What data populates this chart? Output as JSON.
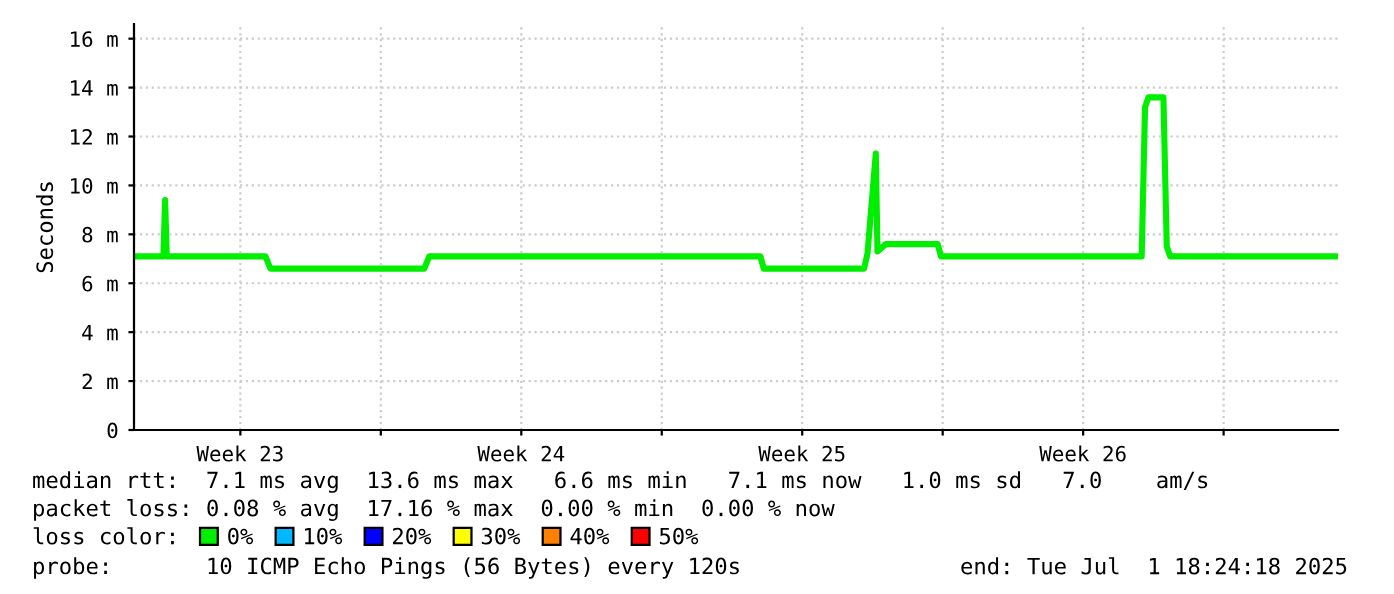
{
  "chart_data": {
    "type": "line",
    "ylabel": "Seconds",
    "x": [
      "2025-06-02T20:24",
      "2025-06-03T14:00",
      "2025-06-03T15:00",
      "2025-06-03T16:00",
      "2025-06-06T03:00",
      "2025-06-06T06:00",
      "2025-06-10T02:00",
      "2025-06-10T05:00",
      "2025-06-18T11:00",
      "2025-06-18T13:00",
      "2025-06-21T01:00",
      "2025-06-21T03:00",
      "2025-06-21T08:00",
      "2025-06-21T09:00",
      "2025-06-21T14:00",
      "2025-06-22T21:00",
      "2025-06-22T23:00",
      "2025-06-27T23:00",
      "2025-06-28T01:00",
      "2025-06-28T03:00",
      "2025-06-28T12:00",
      "2025-06-28T14:00",
      "2025-06-28T16:00",
      "2025-07-02T19:00"
    ],
    "series": [
      {
        "name": "0%",
        "color": "#00ee00",
        "values": [
          7.1,
          7.1,
          9.4,
          7.1,
          7.1,
          6.6,
          6.6,
          7.1,
          7.1,
          6.6,
          6.6,
          7.2,
          11.3,
          7.3,
          7.6,
          7.6,
          7.1,
          7.1,
          13.2,
          13.6,
          13.6,
          7.5,
          7.1,
          7.1
        ]
      },
      {
        "name": "10%",
        "color": "#00b8ff",
        "values": [
          null,
          null,
          null,
          null,
          null,
          null,
          null,
          null,
          null,
          null,
          null,
          null,
          null,
          null,
          null,
          null,
          null,
          null,
          null,
          null,
          null,
          null,
          null,
          null
        ]
      },
      {
        "name": "20%",
        "color": "#0000ff",
        "values": [
          null,
          null,
          null,
          null,
          null,
          null,
          null,
          null,
          null,
          null,
          null,
          null,
          null,
          null,
          null,
          null,
          null,
          null,
          null,
          null,
          null,
          null,
          null,
          null
        ]
      },
      {
        "name": "30%",
        "color": "#ffff00",
        "values": [
          null,
          null,
          null,
          null,
          null,
          null,
          null,
          null,
          null,
          null,
          null,
          null,
          null,
          null,
          null,
          null,
          null,
          null,
          null,
          null,
          null,
          null,
          null,
          null
        ]
      },
      {
        "name": "40%",
        "color": "#ff8000",
        "values": [
          null,
          null,
          null,
          null,
          null,
          null,
          null,
          null,
          null,
          null,
          null,
          null,
          null,
          null,
          null,
          null,
          null,
          null,
          null,
          null,
          null,
          null,
          null,
          null
        ]
      },
      {
        "name": "50%",
        "color": "#ff0000",
        "values": [
          null,
          null,
          null,
          null,
          null,
          null,
          null,
          null,
          null,
          null,
          null,
          null,
          null,
          null,
          null,
          null,
          null,
          null,
          null,
          null,
          null,
          null,
          null,
          null
        ]
      }
    ],
    "xlim": [
      "2025-06-02T20:24",
      "2025-07-02T20:24"
    ],
    "xticks": [
      {
        "value": "2025-06-05T12:00",
        "label": "Week 23"
      },
      {
        "value": "2025-06-09T00:00",
        "label": null
      },
      {
        "value": "2025-06-12T12:00",
        "label": "Week 24"
      },
      {
        "value": "2025-06-16T00:00",
        "label": null
      },
      {
        "value": "2025-06-19T12:00",
        "label": "Week 25"
      },
      {
        "value": "2025-06-23T00:00",
        "label": null
      },
      {
        "value": "2025-06-26T12:00",
        "label": "Week 26"
      },
      {
        "value": "2025-06-30T00:00",
        "label": null
      }
    ],
    "ylim": [
      0,
      16.6
    ],
    "yticks": [
      0,
      {
        "value": 2,
        "label": "2 m"
      },
      {
        "value": 4,
        "label": "4 m"
      },
      {
        "value": 6,
        "label": "6 m"
      },
      {
        "value": 8,
        "label": "8 m"
      },
      {
        "value": 10,
        "label": "10 m"
      },
      {
        "value": 12,
        "label": "12 m"
      },
      {
        "value": 14,
        "label": "14 m"
      },
      {
        "value": 16,
        "label": "16 m"
      }
    ],
    "grid": true,
    "legend": "bottom",
    "marker": "none",
    "line_style": "solid",
    "annotations": [
      "median rtt:  7.1 ms avg  13.6 ms max   6.6 ms min   7.1 ms now   1.0 ms sd   7.0    am/s",
      "packet loss: 0.08 % avg  17.16 % max  0.00 % min  0.00 % now",
      "loss color:",
      "probe:       10 ICMP Echo Pings (56 Bytes) every 120s",
      "end: Tue Jul  1 18:24:18 2025"
    ]
  }
}
